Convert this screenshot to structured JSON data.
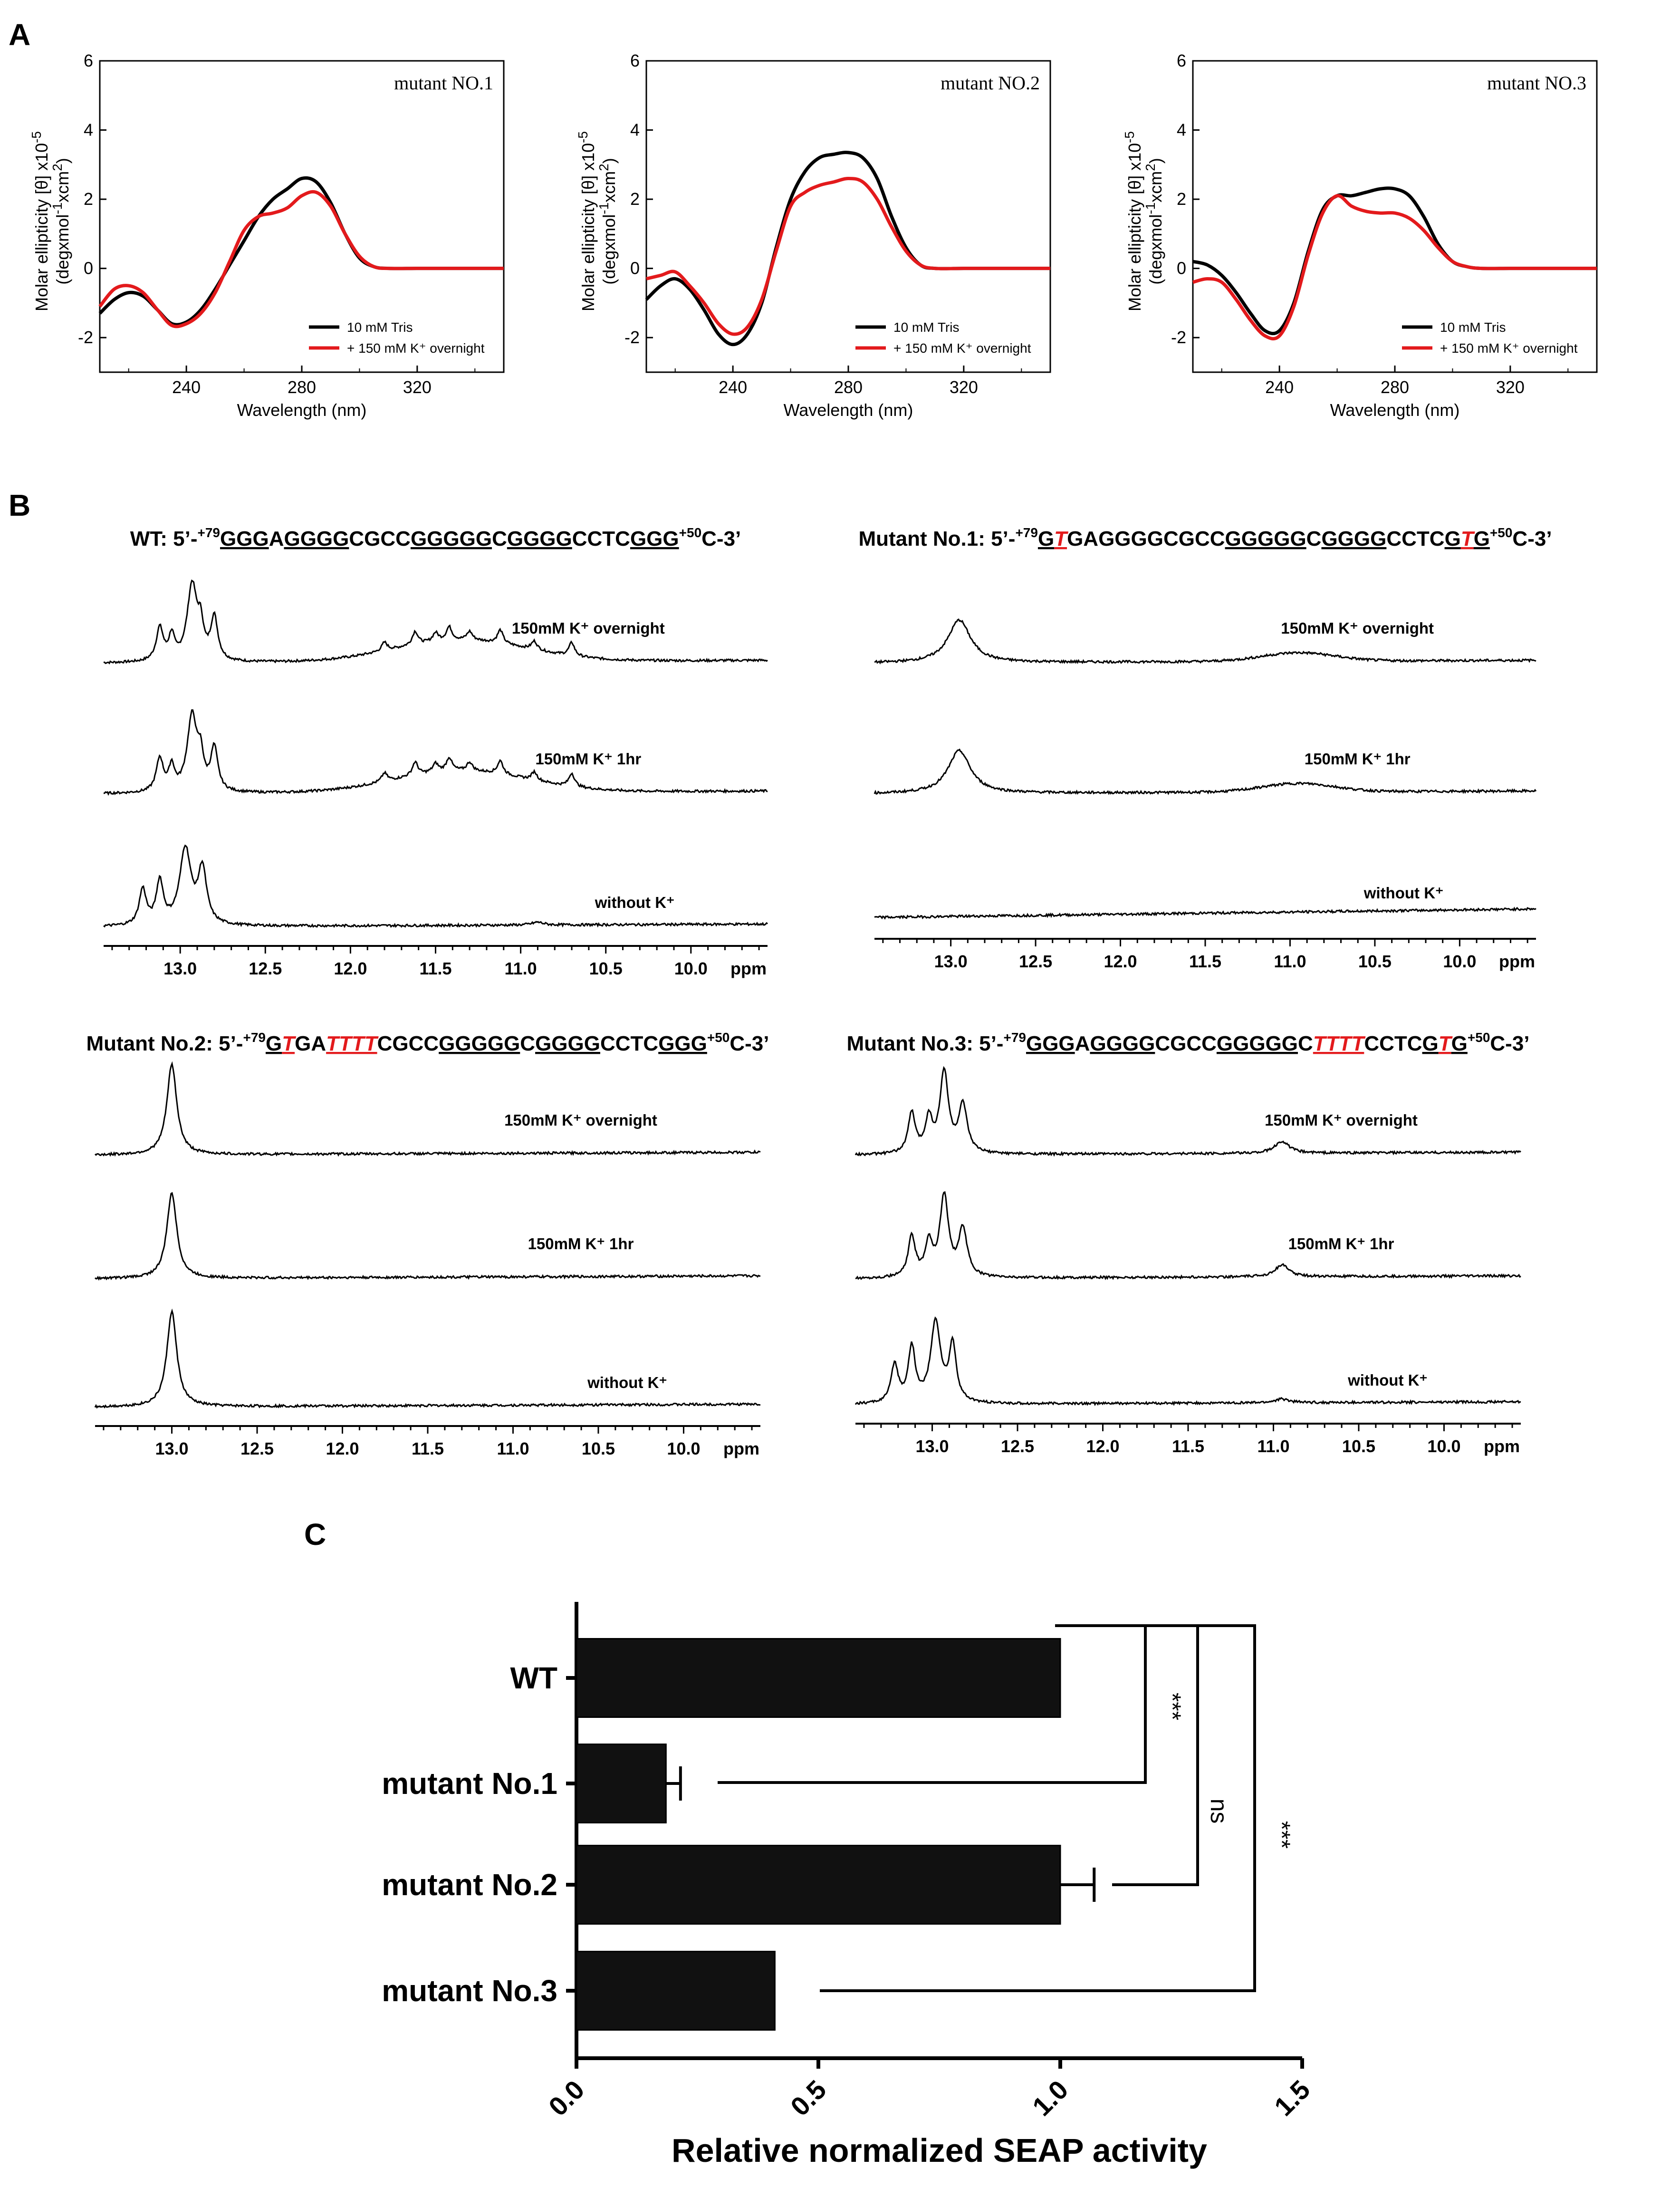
{
  "panel_labels": [
    "A",
    "B",
    "C"
  ],
  "colors": {
    "black": "#000000",
    "red": "#e31a1c",
    "bar_fill": "#111111"
  },
  "cd": {
    "xlabel": "Wavelength (nm)",
    "ylabel_line1": "Molar ellipticity [θ] x10",
    "ylabel_exp": "-5",
    "ylabel_line2": "(degxmol",
    "ylabel_unit_exp1": "-1",
    "ylabel_line2b": "xcm",
    "ylabel_unit_exp2": "2",
    "ylabel_line2c": ")",
    "x_ticks": [
      "240",
      "280",
      "320"
    ],
    "y_ticks": [
      "6",
      "4",
      "2",
      "0",
      "-2"
    ],
    "legend": [
      "10 mM Tris",
      "+ 150 mM K⁺ overnight"
    ],
    "panels": [
      {
        "title": "mutant NO.1"
      },
      {
        "title": "mutant NO.2"
      },
      {
        "title": "mutant NO.3"
      }
    ]
  },
  "chart_data": [
    {
      "type": "line",
      "title": "mutant NO.1",
      "xlabel": "Wavelength (nm)",
      "ylabel": "Molar ellipticity [θ] x10^-5 (degxmol^-1xcm^2)",
      "xlim": [
        210,
        350
      ],
      "ylim": [
        -3,
        6
      ],
      "series": [
        {
          "name": "10 mM Tris",
          "x": [
            210,
            215,
            220,
            225,
            230,
            235,
            240,
            245,
            250,
            255,
            260,
            265,
            270,
            275,
            280,
            285,
            290,
            295,
            300,
            305,
            310,
            320,
            330,
            340,
            350
          ],
          "y": [
            -1.3,
            -0.9,
            -0.7,
            -0.8,
            -1.2,
            -1.6,
            -1.55,
            -1.2,
            -0.6,
            0.1,
            0.8,
            1.5,
            2.0,
            2.3,
            2.6,
            2.5,
            1.9,
            1.0,
            0.3,
            0.05,
            0,
            0,
            0,
            0,
            0
          ]
        },
        {
          "name": "+ 150 mM K⁺ overnight",
          "x": [
            210,
            215,
            220,
            225,
            230,
            235,
            240,
            245,
            250,
            255,
            260,
            265,
            270,
            275,
            280,
            285,
            290,
            295,
            300,
            305,
            310,
            320,
            330,
            340,
            350
          ],
          "y": [
            -1.1,
            -0.6,
            -0.5,
            -0.7,
            -1.2,
            -1.65,
            -1.6,
            -1.3,
            -0.7,
            0.2,
            1.1,
            1.5,
            1.6,
            1.75,
            2.1,
            2.2,
            1.8,
            1.0,
            0.35,
            0.05,
            0,
            0,
            0,
            0,
            0
          ]
        }
      ]
    },
    {
      "type": "line",
      "title": "mutant NO.2",
      "xlabel": "Wavelength (nm)",
      "ylabel": "Molar ellipticity [θ] x10^-5 (degxmol^-1xcm^2)",
      "xlim": [
        210,
        350
      ],
      "ylim": [
        -3,
        6
      ],
      "series": [
        {
          "name": "10 mM Tris",
          "x": [
            210,
            215,
            220,
            225,
            230,
            235,
            240,
            245,
            250,
            255,
            260,
            265,
            270,
            275,
            280,
            285,
            290,
            295,
            300,
            305,
            310,
            320,
            330,
            340,
            350
          ],
          "y": [
            -0.9,
            -0.5,
            -0.3,
            -0.6,
            -1.2,
            -1.9,
            -2.2,
            -1.9,
            -1.0,
            0.6,
            2.0,
            2.8,
            3.2,
            3.3,
            3.35,
            3.2,
            2.6,
            1.5,
            0.6,
            0.1,
            0,
            0,
            0,
            0,
            0
          ]
        },
        {
          "name": "+ 150 mM K⁺ overnight",
          "x": [
            210,
            215,
            220,
            225,
            230,
            235,
            240,
            245,
            250,
            255,
            260,
            265,
            270,
            275,
            280,
            285,
            290,
            295,
            300,
            305,
            310,
            320,
            330,
            340,
            350
          ],
          "y": [
            -0.3,
            -0.2,
            -0.1,
            -0.5,
            -1.0,
            -1.6,
            -1.9,
            -1.7,
            -0.9,
            0.5,
            1.8,
            2.2,
            2.4,
            2.5,
            2.6,
            2.5,
            2.0,
            1.2,
            0.5,
            0.1,
            0,
            0,
            0,
            0,
            0
          ]
        }
      ]
    },
    {
      "type": "line",
      "title": "mutant NO.3",
      "xlabel": "Wavelength (nm)",
      "ylabel": "Molar ellipticity [θ] x10^-5 (degxmol^-1xcm^2)",
      "xlim": [
        210,
        350
      ],
      "ylim": [
        -3,
        6
      ],
      "series": [
        {
          "name": "10 mM Tris",
          "x": [
            210,
            215,
            220,
            225,
            230,
            235,
            240,
            245,
            250,
            255,
            260,
            265,
            270,
            275,
            280,
            285,
            290,
            295,
            300,
            305,
            310,
            320,
            330,
            340,
            350
          ],
          "y": [
            0.2,
            0.1,
            -0.2,
            -0.7,
            -1.3,
            -1.8,
            -1.8,
            -1.0,
            0.5,
            1.7,
            2.1,
            2.1,
            2.2,
            2.3,
            2.3,
            2.1,
            1.5,
            0.7,
            0.2,
            0.05,
            0,
            0,
            0,
            0,
            0
          ]
        },
        {
          "name": "+ 150 mM K⁺ overnight",
          "x": [
            210,
            215,
            220,
            225,
            230,
            235,
            240,
            245,
            250,
            255,
            260,
            265,
            270,
            275,
            280,
            285,
            290,
            295,
            300,
            305,
            310,
            320,
            330,
            340,
            350
          ],
          "y": [
            -0.4,
            -0.3,
            -0.4,
            -0.9,
            -1.5,
            -1.95,
            -1.95,
            -1.1,
            0.4,
            1.6,
            2.1,
            1.8,
            1.65,
            1.6,
            1.6,
            1.45,
            1.1,
            0.6,
            0.2,
            0.05,
            0,
            0,
            0,
            0,
            0
          ]
        }
      ]
    },
    {
      "type": "bar",
      "orientation": "horizontal",
      "categories": [
        "WT",
        "mutant No.1",
        "mutant No.2",
        "mutant No.3"
      ],
      "values": [
        1.0,
        0.185,
        1.0,
        0.41
      ],
      "errors": [
        0,
        0.03,
        0.07,
        0.0
      ],
      "xlabel": "Relative normalized SEAP activity",
      "xlim": [
        0,
        1.5
      ],
      "x_ticks": [
        "0.0",
        "0.5",
        "1.0",
        "1.5"
      ],
      "significance": [
        {
          "pair": [
            "WT",
            "mutant No.1"
          ],
          "label": "***"
        },
        {
          "pair": [
            "WT",
            "mutant No.2"
          ],
          "label": "ns"
        },
        {
          "pair": [
            "WT",
            "mutant No.3"
          ],
          "label": "***"
        }
      ]
    }
  ],
  "nmr": {
    "ppm_label": "ppm",
    "ticks": [
      "13.0",
      "12.5",
      "12.0",
      "11.5",
      "11.0",
      "10.5",
      "10.0"
    ],
    "conditions": [
      "150mM K⁺ overnight",
      "150mM K⁺ 1hr",
      "without K⁺"
    ],
    "panels": [
      {
        "name_prefix": "WT: 5’-",
        "sup_start": "+79",
        "sup_end": "+50",
        "end": "C-3’",
        "seq": [
          [
            "GGG",
            1,
            0
          ],
          [
            "A",
            0,
            0
          ],
          [
            "GGGG",
            1,
            0
          ],
          [
            "CGCC",
            0,
            0
          ],
          [
            "GGGGG",
            1,
            0
          ],
          [
            "C",
            0,
            0
          ],
          [
            "GGGG",
            1,
            0
          ],
          [
            "CCTC",
            0,
            0
          ],
          [
            "GGG",
            1,
            0
          ]
        ]
      },
      {
        "name_prefix": "Mutant No.1: 5’-",
        "sup_start": "+79",
        "sup_end": "+50",
        "end": "C-3’",
        "seq": [
          [
            "G",
            1,
            0
          ],
          [
            "T",
            1,
            1
          ],
          [
            "G",
            0,
            0
          ],
          [
            "AGGGG",
            0,
            0
          ],
          [
            "CGCC",
            0,
            0
          ],
          [
            "GGGGG",
            1,
            0
          ],
          [
            "C",
            0,
            0
          ],
          [
            "GGGG",
            1,
            0
          ],
          [
            "CCTC",
            0,
            0
          ],
          [
            "G",
            1,
            0
          ],
          [
            "T",
            1,
            1
          ],
          [
            "G",
            1,
            0
          ]
        ]
      },
      {
        "name_prefix": "Mutant No.2: 5’-",
        "sup_start": "+79",
        "sup_end": "+50",
        "end": "C-3’",
        "seq": [
          [
            "G",
            1,
            0
          ],
          [
            "T",
            1,
            1
          ],
          [
            "GA",
            0,
            0
          ],
          [
            "TTTT",
            1,
            1
          ],
          [
            "CGCC",
            0,
            0
          ],
          [
            "GGGGG",
            1,
            0
          ],
          [
            "C",
            0,
            0
          ],
          [
            "GGGG",
            1,
            0
          ],
          [
            "CCTC",
            0,
            0
          ],
          [
            "GGG",
            1,
            0
          ]
        ]
      },
      {
        "name_prefix": "Mutant No.3: 5’-",
        "sup_start": "+79",
        "sup_end": "+50",
        "end": "C-3’",
        "seq": [
          [
            "GGG",
            1,
            0
          ],
          [
            "A",
            0,
            0
          ],
          [
            "GGGG",
            1,
            0
          ],
          [
            "CGCC",
            0,
            0
          ],
          [
            "GGGGG",
            1,
            0
          ],
          [
            "C",
            0,
            0
          ],
          [
            "TTTT",
            1,
            1
          ],
          [
            "CCTC",
            0,
            0
          ],
          [
            "G",
            1,
            0
          ],
          [
            "T",
            1,
            1
          ],
          [
            "G",
            1,
            0
          ]
        ]
      }
    ]
  }
}
